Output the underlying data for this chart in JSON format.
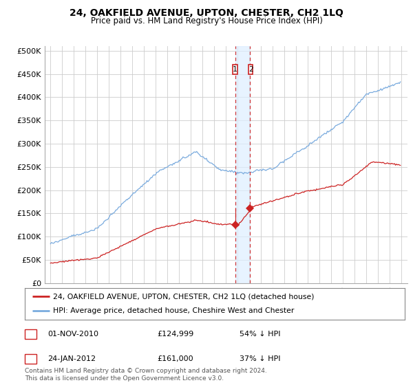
{
  "title": "24, OAKFIELD AVENUE, UPTON, CHESTER, CH2 1LQ",
  "subtitle": "Price paid vs. HM Land Registry's House Price Index (HPI)",
  "title_fontsize": 10,
  "subtitle_fontsize": 8.5,
  "ylabel_ticks": [
    "£0",
    "£50K",
    "£100K",
    "£150K",
    "£200K",
    "£250K",
    "£300K",
    "£350K",
    "£400K",
    "£450K",
    "£500K"
  ],
  "ytick_values": [
    0,
    50000,
    100000,
    150000,
    200000,
    250000,
    300000,
    350000,
    400000,
    450000,
    500000
  ],
  "ylim": [
    0,
    510000
  ],
  "xlim_start": 1994.5,
  "xlim_end": 2025.5,
  "hpi_color": "#7aabde",
  "price_color": "#cc2222",
  "sale1_date": 2010.83,
  "sale1_price": 124999,
  "sale2_date": 2012.07,
  "sale2_price": 161000,
  "sale1_label": "1",
  "sale2_label": "2",
  "sale1_text": "01-NOV-2010",
  "sale1_amount": "£124,999",
  "sale1_hpi": "54% ↓ HPI",
  "sale2_text": "24-JAN-2012",
  "sale2_amount": "£161,000",
  "sale2_hpi": "37% ↓ HPI",
  "legend_line1": "24, OAKFIELD AVENUE, UPTON, CHESTER, CH2 1LQ (detached house)",
  "legend_line2": "HPI: Average price, detached house, Cheshire West and Chester",
  "footnote": "Contains HM Land Registry data © Crown copyright and database right 2024.\nThis data is licensed under the Open Government Licence v3.0.",
  "background_color": "#ffffff",
  "grid_color": "#cccccc"
}
